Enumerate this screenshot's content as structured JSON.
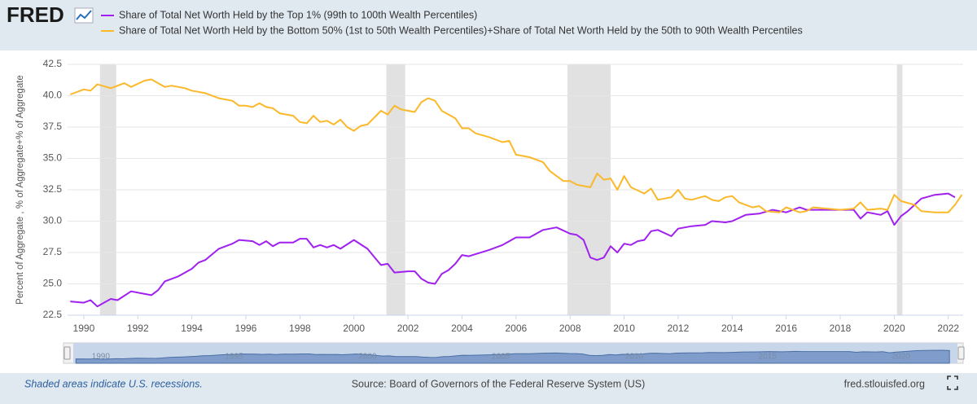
{
  "chart_data": {
    "type": "line",
    "logo": "FRED",
    "ylabel": "Percent of Aggregate , % of Aggregate+% of Aggregate",
    "note": "Shaded areas indicate U.S. recessions.",
    "source": "Source: Board of Governors of the Federal Reserve System (US)",
    "site": "fred.stlouisfed.org",
    "xlim": [
      1989.4,
      2022.55
    ],
    "xticks": [
      1990,
      1992,
      1994,
      1996,
      1998,
      2000,
      2002,
      2004,
      2006,
      2008,
      2010,
      2012,
      2014,
      2016,
      2018,
      2020,
      2022
    ],
    "ylim": [
      22.5,
      42.5
    ],
    "yticks": [
      22.5,
      {
        "value": 25,
        "label": "25.0"
      },
      27.5,
      {
        "value": 30,
        "label": "30.0"
      },
      32.5,
      {
        "value": 35,
        "label": "35.0"
      },
      37.5,
      {
        "value": 40,
        "label": "40.0"
      },
      42.5
    ],
    "grid": true,
    "recessions": [
      [
        1990.6,
        1991.2
      ],
      [
        2001.2,
        2001.9
      ],
      [
        2007.9,
        2009.5
      ],
      [
        2020.1,
        2020.3
      ]
    ],
    "navigator_ticks": [
      1990,
      1995,
      2000,
      2005,
      2010,
      2015,
      2020
    ],
    "series": [
      {
        "name": "Share of Total Net Worth Held by the Top 1% (99th to 100th Wealth Percentiles)",
        "color": "#a020f0",
        "x": [
          1989.5,
          1990,
          1990.25,
          1990.5,
          1991,
          1991.25,
          1991.75,
          1992.5,
          1992.75,
          1993,
          1993.5,
          1994,
          1994.25,
          1994.5,
          1995,
          1995.5,
          1995.75,
          1996.25,
          1996.5,
          1996.75,
          1997,
          1997.25,
          1997.75,
          1998,
          1998.25,
          1998.5,
          1998.75,
          1999,
          1999.25,
          1999.5,
          2000,
          2000.5,
          2001,
          2001.25,
          2001.5,
          2002,
          2002.25,
          2002.5,
          2002.75,
          2003,
          2003.25,
          2003.5,
          2003.75,
          2004,
          2004.25,
          2005,
          2005.5,
          2006,
          2006.5,
          2007,
          2007.5,
          2008,
          2008.25,
          2008.5,
          2008.75,
          2009,
          2009.25,
          2009.5,
          2009.75,
          2010,
          2010.25,
          2010.5,
          2010.75,
          2011,
          2011.25,
          2011.75,
          2012,
          2012.5,
          2013,
          2013.25,
          2013.75,
          2014,
          2014.5,
          2015,
          2015.5,
          2016,
          2016.5,
          2016.75,
          2017,
          2018,
          2018.5,
          2018.75,
          2019,
          2019.5,
          2019.75,
          2020,
          2020.25,
          2020.5,
          2021,
          2021.5,
          2022,
          2022.25
        ],
        "values": [
          23.6,
          23.5,
          23.7,
          23.2,
          23.8,
          23.7,
          24.4,
          24.1,
          24.5,
          25.2,
          25.6,
          26.2,
          26.7,
          26.9,
          27.8,
          28.2,
          28.5,
          28.4,
          28.1,
          28.4,
          28.0,
          28.3,
          28.3,
          28.6,
          28.6,
          27.9,
          28.1,
          27.9,
          28.1,
          27.8,
          28.5,
          27.8,
          26.5,
          26.6,
          25.9,
          26.0,
          26.0,
          25.4,
          25.1,
          25.0,
          25.8,
          26.1,
          26.6,
          27.3,
          27.2,
          27.7,
          28.1,
          28.7,
          28.7,
          29.3,
          29.5,
          29.0,
          28.9,
          28.5,
          27.1,
          26.9,
          27.1,
          28.0,
          27.5,
          28.2,
          28.1,
          28.4,
          28.5,
          29.2,
          29.3,
          28.8,
          29.4,
          29.6,
          29.7,
          30.0,
          29.9,
          30.0,
          30.5,
          30.6,
          30.9,
          30.7,
          31.1,
          30.9,
          30.9,
          30.9,
          30.9,
          30.2,
          30.7,
          30.5,
          30.8,
          29.7,
          30.4,
          30.8,
          31.8,
          32.1,
          32.2,
          31.9
        ]
      },
      {
        "name": "Share of Total Net Worth Held by the Bottom 50% (1st to 50th Wealth Percentiles)+Share of Total Net Worth Held by the 50th to 90th Wealth Percentiles",
        "color": "#fbb829",
        "x": [
          1989.5,
          1990,
          1990.25,
          1990.5,
          1991,
          1991.5,
          1991.75,
          1992.25,
          1992.5,
          1993,
          1993.25,
          1993.75,
          1994,
          1994.5,
          1995,
          1995.5,
          1995.75,
          1996,
          1996.25,
          1996.5,
          1996.75,
          1997,
          1997.25,
          1997.75,
          1998,
          1998.25,
          1998.5,
          1998.75,
          1999,
          1999.25,
          1999.5,
          1999.75,
          2000,
          2000.25,
          2000.5,
          2001,
          2001.25,
          2001.5,
          2001.75,
          2002.25,
          2002.5,
          2002.75,
          2003,
          2003.25,
          2003.75,
          2004,
          2004.25,
          2004.5,
          2005,
          2005.5,
          2005.75,
          2006,
          2006.5,
          2007,
          2007.25,
          2007.75,
          2008,
          2008.25,
          2008.75,
          2009,
          2009.25,
          2009.5,
          2009.75,
          2010,
          2010.25,
          2010.75,
          2011,
          2011.25,
          2011.75,
          2012,
          2012.25,
          2012.5,
          2013,
          2013.25,
          2013.5,
          2013.75,
          2014,
          2014.25,
          2014.75,
          2015,
          2015.25,
          2015.75,
          2016,
          2016.5,
          2016.75,
          2017,
          2017.5,
          2018,
          2018.5,
          2018.75,
          2019,
          2019.5,
          2019.75,
          2020,
          2020.25,
          2020.75,
          2021,
          2021.5,
          2021.75,
          2022,
          2022.25,
          2022.5
        ],
        "values": [
          40.1,
          40.5,
          40.4,
          40.9,
          40.6,
          41.0,
          40.7,
          41.2,
          41.3,
          40.7,
          40.8,
          40.6,
          40.4,
          40.2,
          39.8,
          39.6,
          39.2,
          39.2,
          39.1,
          39.4,
          39.1,
          39.0,
          38.6,
          38.4,
          37.9,
          37.8,
          38.4,
          37.9,
          38.0,
          37.7,
          38.1,
          37.5,
          37.2,
          37.6,
          37.7,
          38.8,
          38.5,
          39.2,
          38.9,
          38.7,
          39.5,
          39.8,
          39.6,
          38.8,
          38.2,
          37.4,
          37.4,
          37.0,
          36.7,
          36.3,
          36.4,
          35.3,
          35.1,
          34.7,
          34.0,
          33.2,
          33.2,
          32.9,
          32.7,
          33.8,
          33.3,
          33.4,
          32.5,
          33.6,
          32.7,
          32.2,
          32.6,
          31.7,
          31.9,
          32.5,
          31.8,
          31.7,
          32.0,
          31.7,
          31.6,
          31.9,
          32.0,
          31.5,
          31.1,
          31.2,
          30.8,
          30.7,
          31.1,
          30.7,
          30.8,
          31.1,
          31.0,
          30.9,
          31.0,
          31.5,
          30.9,
          31.0,
          30.9,
          32.1,
          31.6,
          31.3,
          30.8,
          30.7,
          30.7,
          30.7,
          31.3,
          32.1
        ]
      }
    ]
  }
}
